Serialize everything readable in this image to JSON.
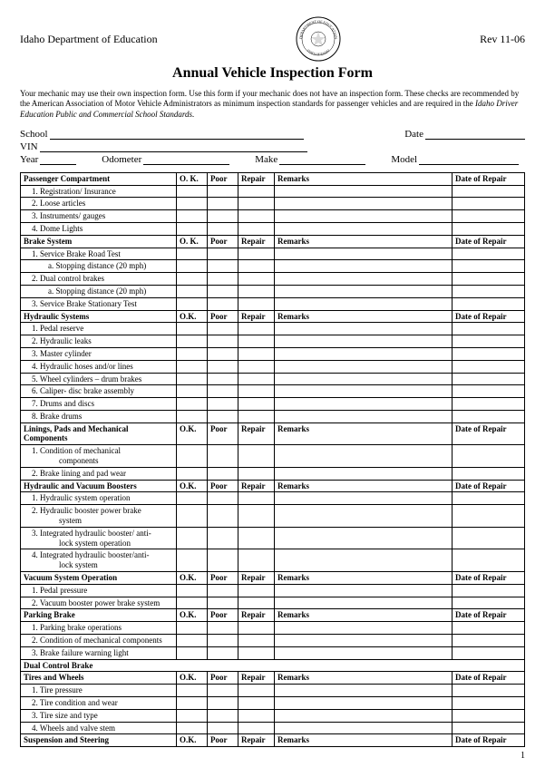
{
  "header": {
    "department": "Idaho Department of Education",
    "revision": "Rev 11-06",
    "title": "Annual Vehicle Inspection Form"
  },
  "intro": {
    "line1": "Your mechanic may use their own inspection form.  Use this form if your mechanic does not have an inspection form.  These checks are recommended by the American Association of Motor Vehicle Administrators as minimum inspection standards for passenger vehicles and are required in the ",
    "line2_italic": "Idaho Driver Education Public and Commercial School Standards."
  },
  "fields": {
    "school_label": "School",
    "date_label": "Date",
    "vin_label": "VIN",
    "year_label": "Year",
    "odometer_label": "Odometer",
    "make_label": "Make",
    "model_label": "Model"
  },
  "columns": {
    "ok": "O. K.",
    "ok_alt": "O.K.",
    "poor": "Poor",
    "repair": "Repair",
    "remarks": "Remarks",
    "date_of_repair": "Date of Repair"
  },
  "sections": [
    {
      "title": "Passenger Compartment",
      "ok": "O. K.",
      "items": [
        "1.  Registration/ Insurance",
        "2.  Loose articles",
        "3.  Instruments/ gauges",
        "4.  Dome Lights"
      ]
    },
    {
      "title": "Brake System",
      "ok": "O. K.",
      "items": [
        "1.  Service Brake Road Test",
        {
          "text": "a. Stopping distance (20 mph)",
          "indent": 2
        },
        "2.  Dual control brakes",
        {
          "text": "a. Stopping distance (20 mph)",
          "indent": 2
        },
        "3.  Service Brake Stationary Test"
      ]
    },
    {
      "title": "Hydraulic Systems",
      "ok": "O.K.",
      "items": [
        "1.  Pedal reserve",
        "2.  Hydraulic leaks",
        "3.  Master cylinder",
        "4.  Hydraulic hoses and/or lines",
        "5.  Wheel cylinders – drum brakes",
        "6.  Caliper- disc brake assembly",
        "7.  Drums and discs",
        "8.  Brake drums"
      ]
    },
    {
      "title": "Linings, Pads and Mechanical Components",
      "ok": "O.K.",
      "items": [
        {
          "text": "1.  Condition of mechanical",
          "sub": "components"
        },
        "2.   Brake lining and pad wear"
      ]
    },
    {
      "title": "Hydraulic and Vacuum Boosters",
      "ok": "O.K.",
      "items": [
        "1.  Hydraulic system operation",
        {
          "text": "2.  Hydraulic booster power brake",
          "sub": "system"
        },
        {
          "text": "3.  Integrated hydraulic booster/ anti-",
          "sub": "lock system operation"
        },
        {
          "text": "4.  Integrated hydraulic booster/anti-",
          "sub": "lock system"
        }
      ]
    },
    {
      "title": "Vacuum System Operation",
      "ok": "O.K.",
      "items": [
        "1.  Pedal pressure",
        "2.  Vacuum booster power brake system"
      ]
    },
    {
      "title": "Parking Brake",
      "ok": "O.K.",
      "items": [
        "1.  Parking brake operations",
        "2.   Condition of mechanical components",
        "3.  Brake failure warning light"
      ]
    },
    {
      "title": "Dual Control Brake",
      "ok": "",
      "no_columns": true,
      "items": []
    },
    {
      "title": "Tires and Wheels",
      "ok": "O.K.",
      "items": [
        "1.  Tire pressure",
        "2.  Tire condition and wear",
        "3.  Tire size and type",
        "4.  Wheels and valve stem"
      ]
    },
    {
      "title": "Suspension and Steering",
      "ok": "O.K.",
      "items": []
    }
  ],
  "page_number": "1",
  "colors": {
    "text": "#000000",
    "background": "#ffffff",
    "border": "#000000"
  }
}
